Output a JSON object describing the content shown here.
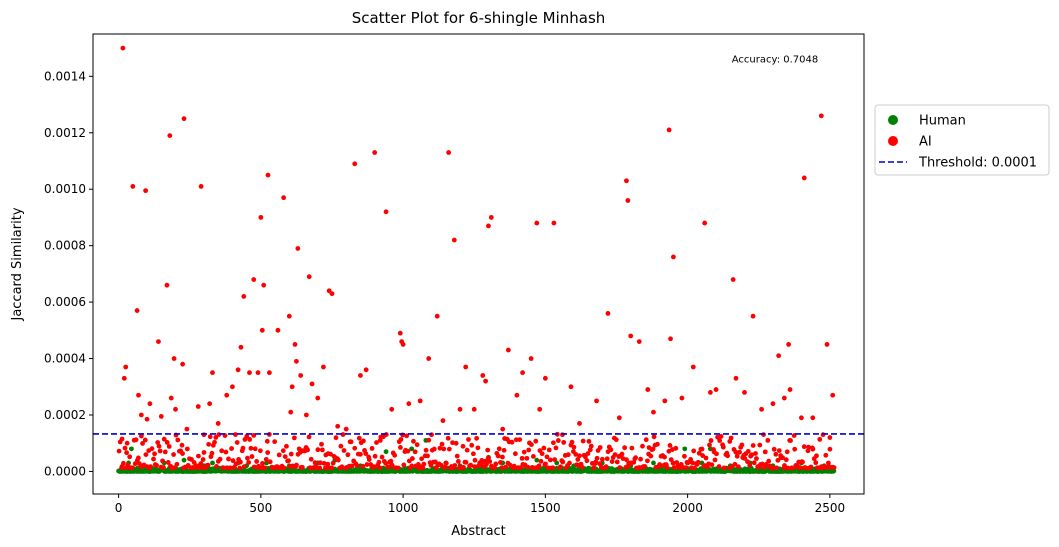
{
  "chart_data": {
    "type": "scatter",
    "title": "Scatter Plot for 6-shingle Minhash",
    "xlabel": "Abstract",
    "ylabel": "Jaccard Similarity",
    "xlim": [
      -90,
      2620
    ],
    "ylim": [
      -8e-05,
      0.00155
    ],
    "xticks": [
      0,
      500,
      1000,
      1500,
      2000,
      2500
    ],
    "yticks": [
      0.0,
      0.0002,
      0.0004,
      0.0006,
      0.0008,
      0.001,
      0.0012,
      0.0014
    ],
    "ytick_labels": [
      "0.0000",
      "0.0002",
      "0.0004",
      "0.0006",
      "0.0008",
      "0.0010",
      "0.0012",
      "0.0014"
    ],
    "grid": false,
    "legend_placement": "outside-right",
    "annotation": "Accuracy: 0.7048",
    "threshold_line": {
      "label": "Threshold: 0.0001",
      "y": 0.000133,
      "color": "#0000cc",
      "style": "dashed"
    },
    "series": [
      {
        "name": "Human",
        "color": "#008000",
        "note_points": "low-valued band near zero plus scattered slightly-raised points",
        "x_range": [
          0,
          2515
        ],
        "count": 2515,
        "points": [
          [
            35,
            3e-05
          ],
          [
            45,
            8e-05
          ],
          [
            85,
            2e-05
          ],
          [
            160,
            3e-05
          ],
          [
            230,
            4e-05
          ],
          [
            300,
            2e-05
          ],
          [
            330,
            3e-05
          ],
          [
            420,
            3e-05
          ],
          [
            450,
            2e-05
          ],
          [
            520,
            3e-05
          ],
          [
            600,
            2e-05
          ],
          [
            700,
            3e-05
          ],
          [
            760,
            4e-05
          ],
          [
            850,
            2e-05
          ],
          [
            940,
            7e-05
          ],
          [
            1030,
            8e-05
          ],
          [
            1080,
            0.00011
          ],
          [
            1150,
            3e-05
          ],
          [
            1200,
            2e-05
          ],
          [
            1300,
            5e-05
          ],
          [
            1350,
            3e-05
          ],
          [
            1470,
            4e-05
          ],
          [
            1540,
            3e-05
          ],
          [
            1600,
            2e-05
          ],
          [
            1700,
            3e-05
          ],
          [
            1800,
            2e-05
          ],
          [
            1880,
            3e-05
          ],
          [
            1990,
            8e-05
          ],
          [
            2050,
            3e-05
          ],
          [
            2080,
            8e-05
          ],
          [
            2150,
            2e-05
          ],
          [
            2220,
            3e-05
          ],
          [
            2300,
            2e-05
          ],
          [
            2400,
            3e-05
          ],
          [
            2480,
            2e-05
          ]
        ]
      },
      {
        "name": "AI",
        "color": "#ff0000",
        "points": [
          [
            15,
            0.0015
          ],
          [
            20,
            0.00033
          ],
          [
            25,
            0.00037
          ],
          [
            12,
            0.000115
          ],
          [
            30,
            0.0001
          ],
          [
            50,
            0.00101
          ],
          [
            65,
            0.00057
          ],
          [
            70,
            0.00027
          ],
          [
            80,
            0.0002
          ],
          [
            95,
            0.000995
          ],
          [
            100,
            0.000185
          ],
          [
            110,
            0.00024
          ],
          [
            140,
            0.00046
          ],
          [
            150,
            0.000195
          ],
          [
            170,
            0.00066
          ],
          [
            180,
            0.00119
          ],
          [
            185,
            0.00026
          ],
          [
            195,
            0.0004
          ],
          [
            200,
            0.00022
          ],
          [
            230,
            0.00125
          ],
          [
            225,
            0.00038
          ],
          [
            240,
            0.00015
          ],
          [
            280,
            0.00023
          ],
          [
            290,
            0.00101
          ],
          [
            300,
            0.00013
          ],
          [
            320,
            0.00024
          ],
          [
            330,
            0.00035
          ],
          [
            350,
            0.00017
          ],
          [
            380,
            0.00027
          ],
          [
            400,
            0.0003
          ],
          [
            420,
            0.00036
          ],
          [
            430,
            0.00044
          ],
          [
            440,
            0.00062
          ],
          [
            460,
            0.00035
          ],
          [
            475,
            0.00068
          ],
          [
            490,
            0.00035
          ],
          [
            500,
            0.0009
          ],
          [
            505,
            0.0005
          ],
          [
            510,
            0.00066
          ],
          [
            525,
            0.00105
          ],
          [
            530,
            0.00035
          ],
          [
            560,
            0.0005
          ],
          [
            580,
            0.00097
          ],
          [
            600,
            0.00055
          ],
          [
            605,
            0.00021
          ],
          [
            610,
            0.0003
          ],
          [
            620,
            0.00045
          ],
          [
            625,
            0.00039
          ],
          [
            630,
            0.00079
          ],
          [
            640,
            0.00034
          ],
          [
            660,
            0.0002
          ],
          [
            670,
            0.00069
          ],
          [
            680,
            0.00031
          ],
          [
            700,
            0.00026
          ],
          [
            720,
            0.00037
          ],
          [
            740,
            0.00064
          ],
          [
            750,
            0.00063
          ],
          [
            770,
            0.00016
          ],
          [
            800,
            0.00015
          ],
          [
            830,
            0.00109
          ],
          [
            850,
            0.00034
          ],
          [
            870,
            0.00036
          ],
          [
            900,
            0.00113
          ],
          [
            920,
            0.00011
          ],
          [
            940,
            0.00092
          ],
          [
            960,
            0.00022
          ],
          [
            990,
            0.00049
          ],
          [
            995,
            0.00046
          ],
          [
            1000,
            0.00045
          ],
          [
            1020,
            0.00024
          ],
          [
            1060,
            0.00025
          ],
          [
            1090,
            0.0004
          ],
          [
            1100,
            0.00013
          ],
          [
            1120,
            0.00055
          ],
          [
            1140,
            0.00018
          ],
          [
            1160,
            0.00113
          ],
          [
            1180,
            0.00082
          ],
          [
            1200,
            0.00022
          ],
          [
            1220,
            0.00037
          ],
          [
            1250,
            0.00022
          ],
          [
            1280,
            0.00034
          ],
          [
            1290,
            0.00032
          ],
          [
            1300,
            0.00087
          ],
          [
            1310,
            0.0009
          ],
          [
            1350,
            0.00015
          ],
          [
            1370,
            0.00043
          ],
          [
            1400,
            0.00027
          ],
          [
            1420,
            0.00035
          ],
          [
            1450,
            0.0004
          ],
          [
            1470,
            0.00088
          ],
          [
            1480,
            0.00022
          ],
          [
            1500,
            0.00033
          ],
          [
            1530,
            0.00088
          ],
          [
            1560,
            0.00013
          ],
          [
            1590,
            0.0003
          ],
          [
            1620,
            0.00017
          ],
          [
            1680,
            0.00025
          ],
          [
            1720,
            0.00056
          ],
          [
            1760,
            0.00019
          ],
          [
            1785,
            0.00103
          ],
          [
            1790,
            0.00096
          ],
          [
            1800,
            0.00048
          ],
          [
            1830,
            0.00046
          ],
          [
            1860,
            0.00029
          ],
          [
            1880,
            0.00021
          ],
          [
            1920,
            0.00025
          ],
          [
            1935,
            0.00121
          ],
          [
            1940,
            0.00047
          ],
          [
            1950,
            0.00076
          ],
          [
            1980,
            0.00026
          ],
          [
            2020,
            0.00037
          ],
          [
            2060,
            0.00088
          ],
          [
            2080,
            0.00028
          ],
          [
            2100,
            0.00029
          ],
          [
            2160,
            0.00068
          ],
          [
            2170,
            0.00033
          ],
          [
            2200,
            0.00028
          ],
          [
            2230,
            0.00055
          ],
          [
            2260,
            0.00022
          ],
          [
            2300,
            0.00024
          ],
          [
            2320,
            0.00041
          ],
          [
            2340,
            0.00026
          ],
          [
            2355,
            0.00045
          ],
          [
            2360,
            0.00029
          ],
          [
            2400,
            0.00019
          ],
          [
            2410,
            0.00104
          ],
          [
            2440,
            0.00019
          ],
          [
            2470,
            0.00126
          ],
          [
            2490,
            0.00045
          ],
          [
            2500,
            0.00012
          ],
          [
            2510,
            0.00027
          ]
        ]
      }
    ]
  }
}
